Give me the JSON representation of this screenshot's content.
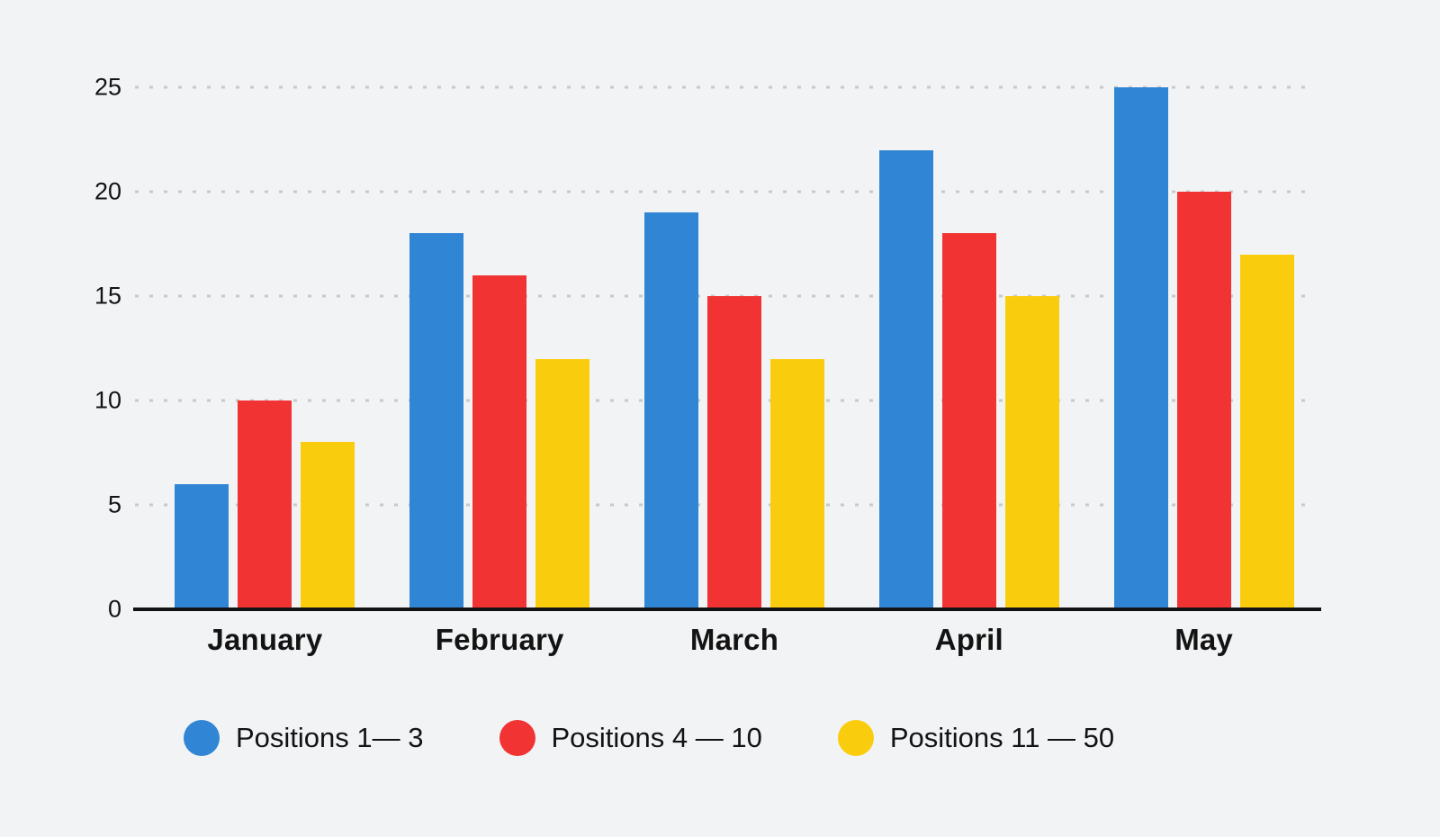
{
  "chart_data": {
    "type": "bar",
    "title": "",
    "xlabel": "",
    "ylabel": "",
    "categories": [
      "January",
      "February",
      "March",
      "April",
      "May"
    ],
    "series": [
      {
        "name": "Positions 1— 3",
        "color": "#3085d4",
        "values": [
          6,
          18,
          19,
          22,
          25
        ]
      },
      {
        "name": "Positions 4 — 10",
        "color": "#f13334",
        "values": [
          10,
          16,
          15,
          18,
          20
        ]
      },
      {
        "name": "Positions 11 — 50",
        "color": "#f9cd0e",
        "values": [
          8,
          12,
          12,
          15,
          17
        ]
      }
    ],
    "yticks": [
      0,
      5,
      10,
      15,
      20,
      25
    ],
    "ylim": [
      0,
      25
    ],
    "grid": "horizontal-dotted",
    "legend_position": "bottom"
  },
  "colors": {
    "background": "#f2f3f5",
    "axis": "#131313",
    "text": "#131313",
    "grid_dots": "#c8c9cb"
  }
}
